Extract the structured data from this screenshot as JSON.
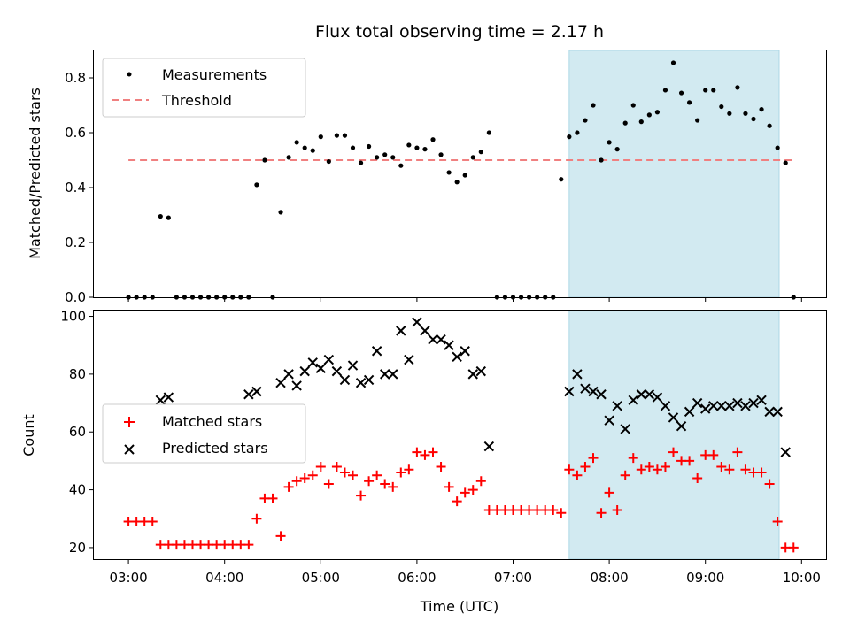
{
  "chart_data": {
    "type": "scatter",
    "title": "Flux total observing time = 2.17 h",
    "xlabel": "Time (UTC)",
    "x_ticks": [
      "03:00",
      "04:00",
      "05:00",
      "06:00",
      "07:00",
      "08:00",
      "09:00",
      "10:00"
    ],
    "shaded_interval": [
      "07:35",
      "09:46"
    ],
    "shade_color": "#add8e6",
    "top_panel": {
      "ylabel": "Matched/Predicted stars",
      "ylim": [
        0,
        0.9
      ],
      "y_ticks": [
        "0.0",
        "0.2",
        "0.4",
        "0.6",
        "0.8"
      ],
      "legend": {
        "location": "upper left",
        "measurements_label": "Measurements",
        "threshold_label": "Threshold"
      },
      "threshold": {
        "value": 0.5,
        "x_start": "03:00",
        "x_end": "09:55",
        "color": "#f08080"
      },
      "series": [
        {
          "name": "Measurements",
          "color": "#000000",
          "times": [
            "03:00",
            "03:05",
            "03:10",
            "03:15",
            "03:20",
            "03:25",
            "03:30",
            "03:35",
            "03:40",
            "03:45",
            "03:50",
            "03:55",
            "04:00",
            "04:05",
            "04:10",
            "04:15",
            "04:20",
            "04:25",
            "04:30",
            "04:35",
            "04:40",
            "04:45",
            "04:50",
            "04:55",
            "05:00",
            "05:05",
            "05:10",
            "05:15",
            "05:20",
            "05:25",
            "05:30",
            "05:35",
            "05:40",
            "05:45",
            "05:50",
            "05:55",
            "06:00",
            "06:05",
            "06:10",
            "06:15",
            "06:20",
            "06:25",
            "06:30",
            "06:35",
            "06:40",
            "06:45",
            "06:50",
            "06:55",
            "07:00",
            "07:05",
            "07:10",
            "07:15",
            "07:20",
            "07:25",
            "07:30",
            "07:35",
            "07:40",
            "07:45",
            "07:50",
            "07:55",
            "08:00",
            "08:05",
            "08:10",
            "08:15",
            "08:20",
            "08:25",
            "08:30",
            "08:35",
            "08:40",
            "08:45",
            "08:50",
            "08:55",
            "09:00",
            "09:05",
            "09:10",
            "09:15",
            "09:20",
            "09:25",
            "09:30",
            "09:35",
            "09:40",
            "09:45",
            "09:50",
            "09:55"
          ],
          "values": [
            0.0,
            0.0,
            0.0,
            0.0,
            0.295,
            0.29,
            0.0,
            0.0,
            0.0,
            0.0,
            0.0,
            0.0,
            0.0,
            0.0,
            0.0,
            0.0,
            0.41,
            0.5,
            0.0,
            0.31,
            0.51,
            0.565,
            0.545,
            0.535,
            0.585,
            0.495,
            0.59,
            0.59,
            0.545,
            0.49,
            0.55,
            0.51,
            0.52,
            0.51,
            0.48,
            0.555,
            0.545,
            0.54,
            0.575,
            0.52,
            0.455,
            0.42,
            0.445,
            0.51,
            0.53,
            0.6,
            0.0,
            0.0,
            0.0,
            0.0,
            0.0,
            0.0,
            0.0,
            0.0,
            0.43,
            0.585,
            0.6,
            0.645,
            0.7,
            0.5,
            0.565,
            0.54,
            0.635,
            0.7,
            0.64,
            0.665,
            0.675,
            0.755,
            0.855,
            0.745,
            0.71,
            0.645,
            0.755,
            0.755,
            0.695,
            0.67,
            0.765,
            0.67,
            0.65,
            0.685,
            0.625,
            0.545,
            0.49,
            0.0
          ]
        }
      ]
    },
    "bottom_panel": {
      "ylabel": "Count",
      "ylim": [
        16,
        102
      ],
      "y_ticks": [
        "20",
        "40",
        "60",
        "80",
        "100"
      ],
      "legend": {
        "location": "center left",
        "matched_label": "Matched stars",
        "predicted_label": "Predicted stars"
      },
      "series": [
        {
          "name": "Matched stars",
          "marker": "+",
          "color": "#ff0000",
          "times": [
            "03:00",
            "03:05",
            "03:10",
            "03:15",
            "03:20",
            "03:25",
            "03:30",
            "03:35",
            "03:40",
            "03:45",
            "03:50",
            "03:55",
            "04:00",
            "04:05",
            "04:10",
            "04:15",
            "04:20",
            "04:25",
            "04:30",
            "04:35",
            "04:40",
            "04:45",
            "04:50",
            "04:55",
            "05:00",
            "05:05",
            "05:10",
            "05:15",
            "05:20",
            "05:25",
            "05:30",
            "05:35",
            "05:40",
            "05:45",
            "05:50",
            "05:55",
            "06:00",
            "06:05",
            "06:10",
            "06:15",
            "06:20",
            "06:25",
            "06:30",
            "06:35",
            "06:40",
            "06:45",
            "06:50",
            "06:55",
            "07:00",
            "07:05",
            "07:10",
            "07:15",
            "07:20",
            "07:25",
            "07:30",
            "07:35",
            "07:40",
            "07:45",
            "07:50",
            "07:55",
            "08:00",
            "08:05",
            "08:10",
            "08:15",
            "08:20",
            "08:25",
            "08:30",
            "08:35",
            "08:40",
            "08:45",
            "08:50",
            "08:55",
            "09:00",
            "09:05",
            "09:10",
            "09:15",
            "09:20",
            "09:25",
            "09:30",
            "09:35",
            "09:40",
            "09:45",
            "09:50",
            "09:55"
          ],
          "values": [
            29,
            29,
            29,
            29,
            21,
            21,
            21,
            21,
            21,
            21,
            21,
            21,
            21,
            21,
            21,
            21,
            30,
            37,
            37,
            24,
            41,
            43,
            44,
            45,
            48,
            42,
            48,
            46,
            45,
            38,
            43,
            45,
            42,
            41,
            46,
            47,
            53,
            52,
            53,
            48,
            41,
            36,
            39,
            40,
            43,
            33,
            33,
            33,
            33,
            33,
            33,
            33,
            33,
            33,
            32,
            47,
            45,
            48,
            51,
            32,
            39,
            33,
            45,
            51,
            47,
            48,
            47,
            48,
            53,
            50,
            50,
            44,
            52,
            52,
            48,
            47,
            53,
            47,
            46,
            46,
            42,
            29,
            20,
            20
          ]
        },
        {
          "name": "Predicted stars",
          "marker": "x",
          "color": "#000000",
          "times": [
            "03:20",
            "03:25",
            "04:15",
            "04:20",
            "04:35",
            "04:40",
            "04:45",
            "04:50",
            "04:55",
            "05:00",
            "05:05",
            "05:10",
            "05:15",
            "05:20",
            "05:25",
            "05:30",
            "05:35",
            "05:40",
            "05:45",
            "05:50",
            "05:55",
            "06:00",
            "06:05",
            "06:10",
            "06:15",
            "06:20",
            "06:25",
            "06:30",
            "06:35",
            "06:40",
            "06:45",
            "07:35",
            "07:40",
            "07:45",
            "07:50",
            "07:55",
            "08:00",
            "08:05",
            "08:10",
            "08:15",
            "08:20",
            "08:25",
            "08:30",
            "08:35",
            "08:40",
            "08:45",
            "08:50",
            "08:55",
            "09:00",
            "09:05",
            "09:10",
            "09:15",
            "09:20",
            "09:25",
            "09:30",
            "09:35",
            "09:40",
            "09:45",
            "09:50"
          ],
          "values": [
            71,
            72,
            73,
            74,
            77,
            80,
            76,
            81,
            84,
            82,
            85,
            81,
            78,
            83,
            77,
            78,
            88,
            80,
            80,
            95,
            85,
            98,
            95,
            92,
            92,
            90,
            86,
            88,
            80,
            81,
            55,
            74,
            80,
            75,
            74,
            73,
            64,
            69,
            61,
            71,
            73,
            73,
            72,
            69,
            65,
            62,
            67,
            70,
            68,
            69,
            69,
            69,
            70,
            69,
            70,
            71,
            67,
            67,
            53
          ]
        }
      ]
    }
  }
}
